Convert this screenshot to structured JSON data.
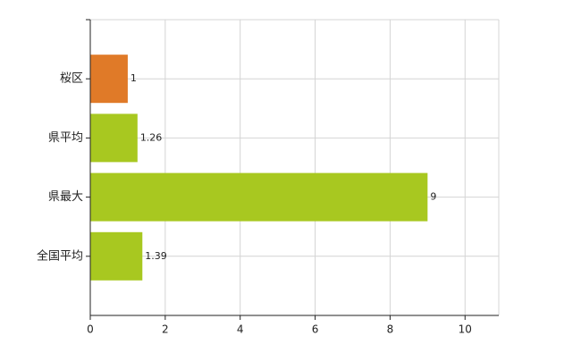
{
  "chart_data": {
    "type": "barh",
    "categories": [
      "桜区",
      "県平均",
      "県最大",
      "全国平均"
    ],
    "values": [
      1,
      1.26,
      9,
      1.39
    ],
    "colors": [
      "#e07a28",
      "#a8c820",
      "#a8c820",
      "#a8c820"
    ],
    "xlim": [
      0,
      10.9
    ],
    "xticks": [
      0,
      2,
      4,
      6,
      8,
      10
    ],
    "grid": true
  }
}
